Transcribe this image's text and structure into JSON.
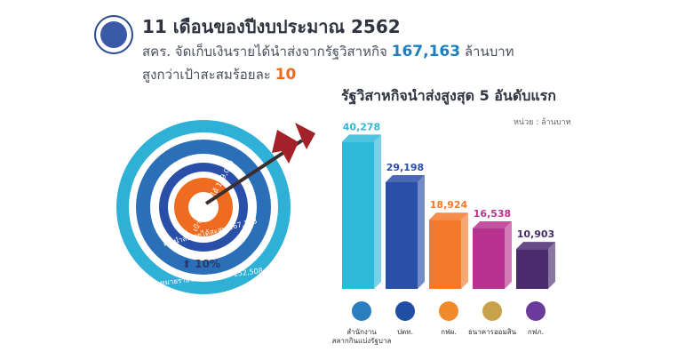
{
  "header": {
    "title": "11 เดือนของปีงบประมาณ 2562",
    "line1_prefix": "สคร. จัดเก็บเงินรายได้นำส่งจากรัฐวิสาหกิจ",
    "line1_value": "167,163",
    "line1_suffix": "ล้านบาท",
    "line2_prefix": "สูงกว่าเป้าสะสมร้อยละ",
    "line2_value": "10"
  },
  "target": {
    "inner_label": "เป้าหมายเก็บได้ 169,000",
    "middle_label": "เงินนำส่งรายได้สะสม 167,163",
    "outer_label": "เป้าหมายรายได้นำส่งสะสม 152,508",
    "increase_label": "10%"
  },
  "chart_data": {
    "type": "bar",
    "title": "รัฐวิสาหกิจนำส่งสูงสุด 5 อันดับแรก",
    "unit": "หน่วย : ล้านบาท",
    "categories": [
      "สำนักงานสลากกินแบ่งรัฐบาล",
      "ปตท.",
      "กฟผ.",
      "ธนาคารออมสิน",
      "กฟภ."
    ],
    "category_lines": [
      [
        "สำนักงาน",
        "สลากกินแบ่งรัฐบาล"
      ],
      [
        "ปตท."
      ],
      [
        "กฟผ."
      ],
      [
        "ธนาคารออมสิน"
      ],
      [
        "กฟภ."
      ]
    ],
    "values": [
      40278,
      29198,
      18924,
      16538,
      10903
    ],
    "value_labels": [
      "40,278",
      "29,198",
      "18,924",
      "16,538",
      "10,903"
    ],
    "colors": [
      "#2fb9d9",
      "#2a4fa8",
      "#f4792a",
      "#b8338f",
      "#4a2c6e"
    ],
    "ylim": [
      0,
      45000
    ],
    "grid": false
  }
}
